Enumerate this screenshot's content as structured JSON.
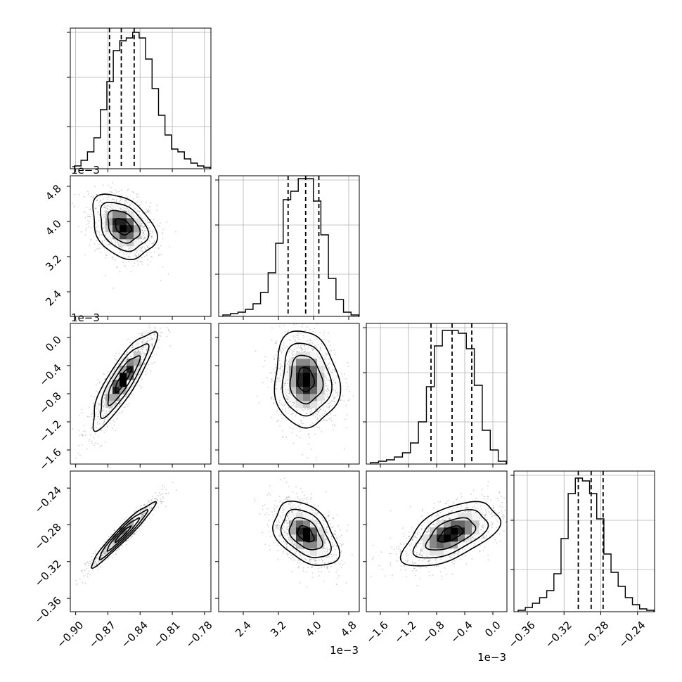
{
  "chart_data": {
    "type": "corner",
    "parameters": 4,
    "grid": true,
    "quantile_lines": "dashed",
    "axes": [
      {
        "range": [
          -0.905,
          -0.774
        ],
        "ticks": [
          -0.9,
          -0.87,
          -0.84,
          -0.81,
          -0.78
        ],
        "tick_labels": [
          "−0.90",
          "−0.87",
          "−0.84",
          "−0.81",
          "−0.78"
        ],
        "offset": ""
      },
      {
        "range": [
          1.84,
          5.04
        ],
        "ticks": [
          2.4,
          3.2,
          4.0,
          4.8
        ],
        "tick_labels": [
          "2.4",
          "3.2",
          "4.0",
          "4.8"
        ],
        "offset": "1e−3"
      },
      {
        "range": [
          -1.8,
          0.2
        ],
        "ticks": [
          -1.6,
          -1.2,
          -0.8,
          -0.4,
          0.0
        ],
        "tick_labels": [
          "−1.6",
          "−1.2",
          "−0.8",
          "−0.4",
          "0.0"
        ],
        "offset": "1e−3"
      },
      {
        "range": [
          -0.3745,
          -0.2215
        ],
        "ticks": [
          -0.36,
          -0.32,
          -0.28,
          -0.24
        ],
        "tick_labels": [
          "−0.36",
          "−0.32",
          "−0.28",
          "−0.24"
        ],
        "offset": ""
      }
    ],
    "diagonal": [
      {
        "quantiles": [
          -0.8685,
          -0.8575,
          -0.8455
        ],
        "hist": [
          0.02,
          0.06,
          0.12,
          0.22,
          0.42,
          0.62,
          0.84,
          0.91,
          0.93,
          0.97,
          0.93,
          0.78,
          0.57,
          0.38,
          0.24,
          0.14,
          0.12,
          0.07,
          0.04,
          0.02,
          0.01
        ]
      },
      {
        "quantiles": [
          3.42,
          3.82,
          4.12
        ],
        "hist": [
          0.01,
          0.02,
          0.03,
          0.05,
          0.09,
          0.17,
          0.31,
          0.52,
          0.83,
          0.89,
          0.98,
          0.98,
          0.82,
          0.58,
          0.27,
          0.12,
          0.03,
          0.01
        ]
      },
      {
        "quantiles": [
          -0.88,
          -0.58,
          -0.3
        ],
        "hist": [
          0.01,
          0.02,
          0.03,
          0.05,
          0.08,
          0.15,
          0.3,
          0.55,
          0.84,
          0.95,
          0.95,
          0.93,
          0.82,
          0.56,
          0.24,
          0.1,
          0.02
        ]
      },
      {
        "quantiles": [
          -0.3045,
          -0.2905,
          -0.2775
        ],
        "hist": [
          0.01,
          0.03,
          0.06,
          0.1,
          0.15,
          0.27,
          0.52,
          0.84,
          0.95,
          0.93,
          0.84,
          0.66,
          0.41,
          0.28,
          0.18,
          0.1,
          0.05,
          0.02,
          0.01
        ]
      }
    ],
    "pairs": [
      {
        "row": 1,
        "col": 0,
        "center": [
          -0.856,
          3.88
        ],
        "sigma": [
          0.0125,
          0.31
        ],
        "rho": -0.33
      },
      {
        "row": 2,
        "col": 0,
        "center": [
          -0.856,
          -0.6
        ],
        "sigma": [
          0.0125,
          0.29
        ],
        "rho": 0.86
      },
      {
        "row": 2,
        "col": 1,
        "center": [
          3.82,
          -0.6
        ],
        "sigma": [
          0.31,
          0.29
        ],
        "rho": -0.08
      },
      {
        "row": 3,
        "col": 0,
        "center": [
          -0.856,
          -0.29
        ],
        "sigma": [
          0.0125,
          0.0148
        ],
        "rho": 0.96
      },
      {
        "row": 3,
        "col": 1,
        "center": [
          3.82,
          -0.29
        ],
        "sigma": [
          0.31,
          0.0148
        ],
        "rho": -0.42
      },
      {
        "row": 3,
        "col": 2,
        "center": [
          -0.6,
          -0.29
        ],
        "sigma": [
          0.29,
          0.0148
        ],
        "rho": 0.55
      }
    ]
  }
}
